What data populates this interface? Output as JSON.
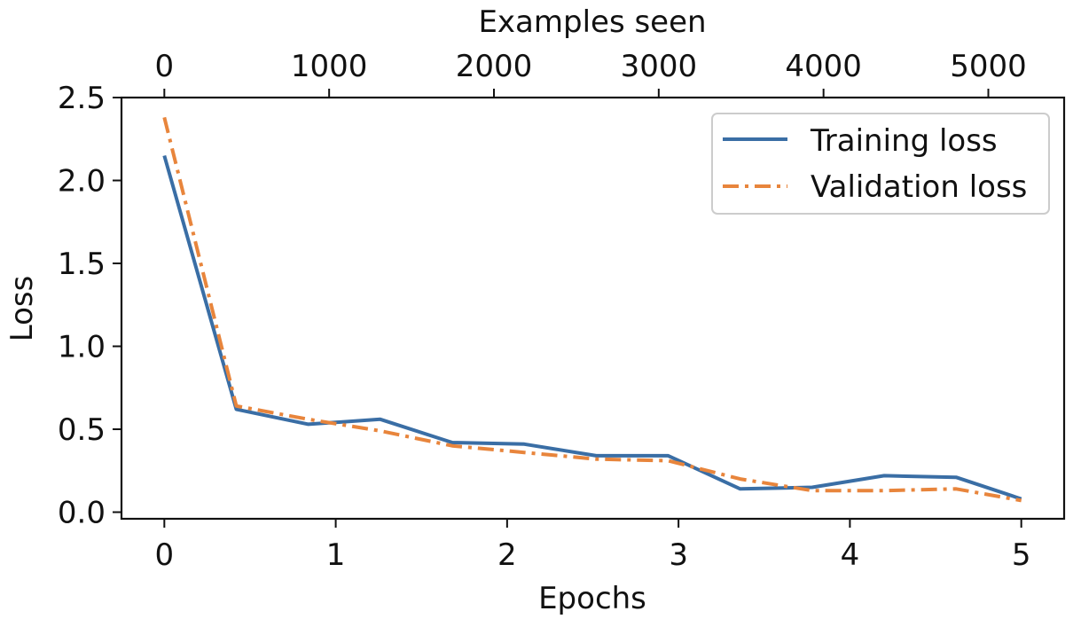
{
  "chart_data": {
    "type": "line",
    "title": "",
    "xlabel": "Epochs",
    "ylabel": "Loss",
    "top_xlabel": "Examples seen",
    "xlim": [
      -0.25,
      5.25
    ],
    "ylim": [
      -0.04,
      2.5
    ],
    "xticks": [
      0,
      1,
      2,
      3,
      4,
      5
    ],
    "xtick_labels": [
      "0",
      "1",
      "2",
      "3",
      "4",
      "5"
    ],
    "yticks": [
      0.0,
      0.5,
      1.0,
      1.5,
      2.0,
      2.5
    ],
    "ytick_labels": [
      "0.0",
      "0.5",
      "1.0",
      "1.5",
      "2.0",
      "2.5"
    ],
    "top_xticks": [
      0,
      1000,
      2000,
      3000,
      4000,
      5000
    ],
    "top_xtick_labels": [
      "0",
      "1000",
      "2000",
      "3000",
      "4000",
      "5000"
    ],
    "top_xlim": [
      -260,
      5460
    ],
    "legend_position": "top-right",
    "grid": false,
    "series": [
      {
        "name": "Training loss",
        "color": "#3a6ea5",
        "line_style": "solid",
        "x": [
          0,
          0.42,
          0.84,
          1.26,
          1.68,
          2.1,
          2.52,
          2.94,
          3.36,
          3.78,
          4.2,
          4.62,
          5.0
        ],
        "y": [
          2.15,
          0.62,
          0.53,
          0.56,
          0.42,
          0.41,
          0.34,
          0.34,
          0.14,
          0.15,
          0.22,
          0.21,
          0.08
        ]
      },
      {
        "name": "Validation loss",
        "color": "#e8853c",
        "line_style": "dashdot",
        "x": [
          0,
          0.42,
          0.84,
          1.26,
          1.68,
          2.1,
          2.52,
          2.94,
          3.36,
          3.78,
          4.2,
          4.62,
          5.0
        ],
        "y": [
          2.38,
          0.64,
          0.56,
          0.49,
          0.4,
          0.36,
          0.32,
          0.31,
          0.2,
          0.13,
          0.13,
          0.14,
          0.07
        ]
      }
    ]
  }
}
